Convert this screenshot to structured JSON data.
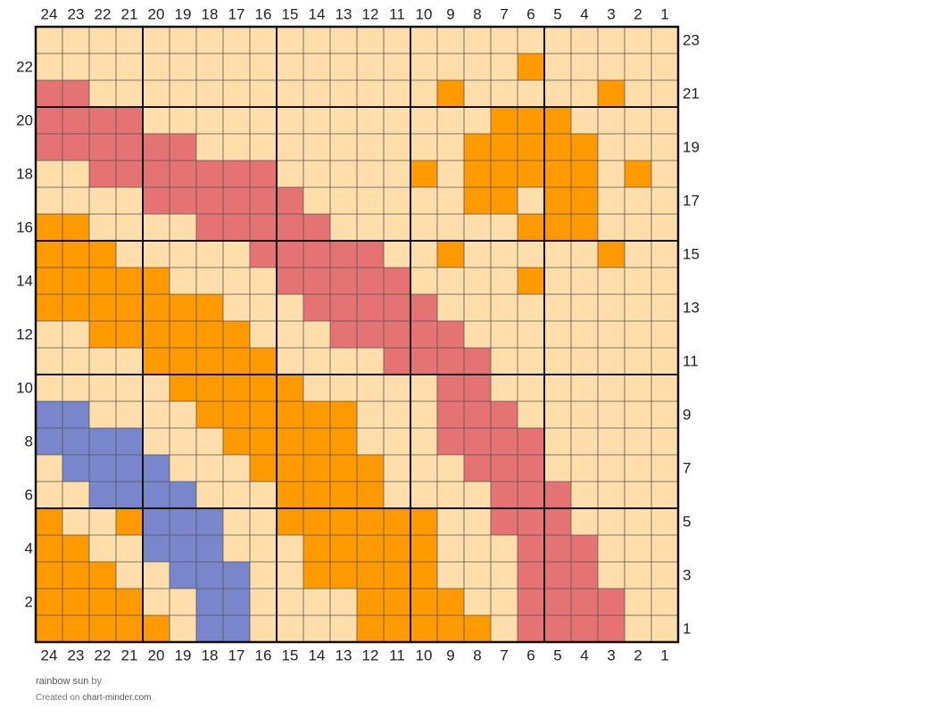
{
  "chart_data": {
    "type": "heatmap",
    "columns": 24,
    "rows": 23,
    "column_labels": [
      "24",
      "23",
      "22",
      "21",
      "20",
      "19",
      "18",
      "17",
      "16",
      "15",
      "14",
      "13",
      "12",
      "11",
      "10",
      "9",
      "8",
      "7",
      "6",
      "5",
      "4",
      "3",
      "2",
      "1"
    ],
    "row_labels_right": [
      "23",
      "21",
      "19",
      "17",
      "15",
      "13",
      "11",
      "9",
      "7",
      "5",
      "3",
      "1"
    ],
    "row_labels_left": [
      "22",
      "20",
      "18",
      "16",
      "14",
      "12",
      "10",
      "8",
      "6",
      "4",
      "2"
    ],
    "palette": {
      "0": "#ffdeac",
      "1": "#ff9900",
      "2": "#e57373",
      "3": "#7986cb"
    },
    "grid": [
      "000000000000000000000000",
      "000000000000000000100000",
      "220000000000000100000100",
      "222200000000000001110000",
      "222222000000000011111000",
      "002222222000001011111010",
      "000022222200000011011000",
      "110000222220000000111000",
      "111000002222200100000100",
      "111110000222220000100000",
      "111111100022222000000000",
      "001111110002222200000000",
      "000011111000022220000000",
      "000001111100000220000000",
      "330000111111000222000000",
      "333300011111000222200000",
      "033330001111100022200000",
      "003333000111100002220000",
      "100133300111111002220000",
      "110033300011111000222000",
      "111003330011111000222000",
      "111100330000111100222200",
      "111110330000111110222200"
    ],
    "major_grid_every": 5
  },
  "caption": {
    "title": "rainbow sun",
    "by": " by",
    "created_prefix": "Created on ",
    "site": "chart-minder.com"
  }
}
